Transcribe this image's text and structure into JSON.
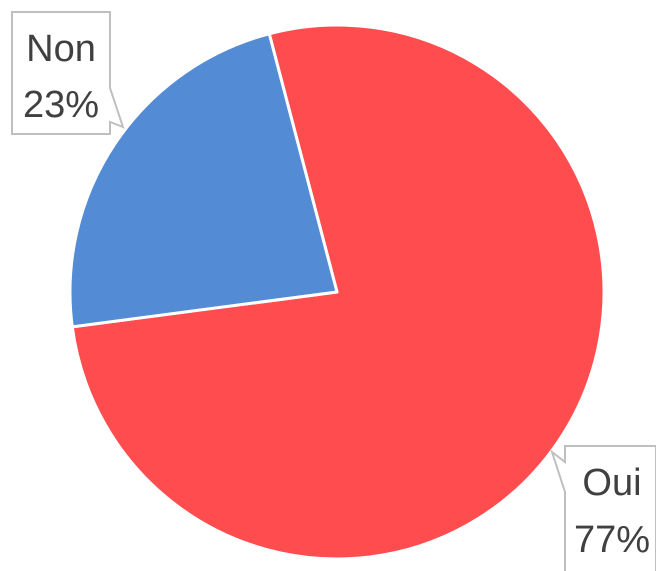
{
  "chart_data": {
    "type": "pie",
    "title": "",
    "slices": [
      {
        "label": "Oui",
        "value": 77,
        "percent_label": "77%",
        "color": "#ff4c4f"
      },
      {
        "label": "Non",
        "value": 23,
        "percent_label": "23%",
        "color": "#548bd5"
      }
    ],
    "legend": "none",
    "data_labels": "callouts"
  }
}
